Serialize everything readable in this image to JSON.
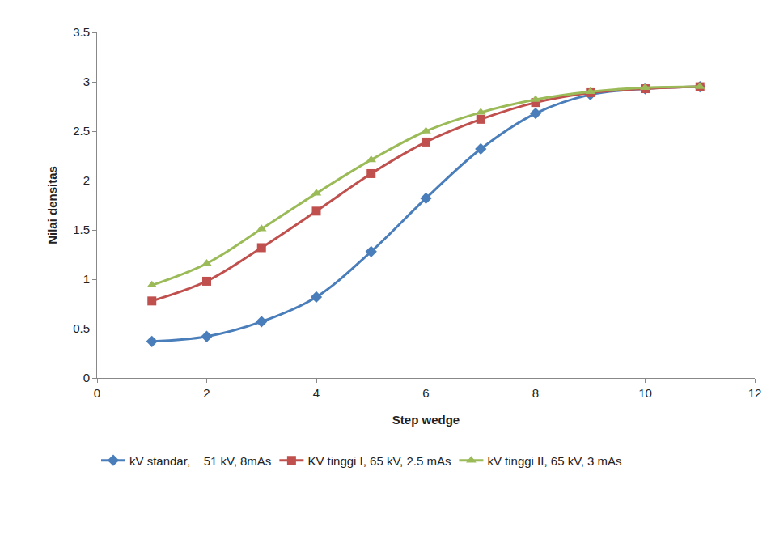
{
  "chart_data": {
    "type": "line",
    "x_label": "Step wedge",
    "y_label": "Nilai densitas",
    "xlim": [
      0,
      12
    ],
    "xticks": [
      0,
      2,
      4,
      6,
      8,
      10,
      12
    ],
    "ylim": [
      0,
      3.5
    ],
    "yticks": [
      0,
      0.5,
      1,
      1.5,
      2,
      2.5,
      3,
      3.5
    ],
    "grid": false,
    "legend": "bottom",
    "line_style": "smooth",
    "x": [
      1,
      2,
      3,
      4,
      5,
      6,
      7,
      8,
      9,
      10,
      11
    ],
    "series": [
      {
        "name": "kV standar,    51 kV, 8mAs",
        "color": "#4a7ebb",
        "marker": "diamond",
        "values": [
          0.37,
          0.42,
          0.57,
          0.82,
          1.28,
          1.82,
          2.32,
          2.68,
          2.87,
          2.93,
          2.95
        ]
      },
      {
        "name": "KV tinggi I, 65 kV, 2.5 mAs",
        "color": "#c0504d",
        "marker": "square",
        "values": [
          0.78,
          0.98,
          1.32,
          1.69,
          2.07,
          2.39,
          2.62,
          2.79,
          2.89,
          2.93,
          2.95
        ]
      },
      {
        "name": "kV tinggi II, 65 kV, 3 mAs",
        "color": "#9bbb59",
        "marker": "triangle-up",
        "values": [
          0.94,
          1.16,
          1.51,
          1.87,
          2.21,
          2.5,
          2.69,
          2.82,
          2.9,
          2.94,
          2.95
        ]
      }
    ]
  }
}
